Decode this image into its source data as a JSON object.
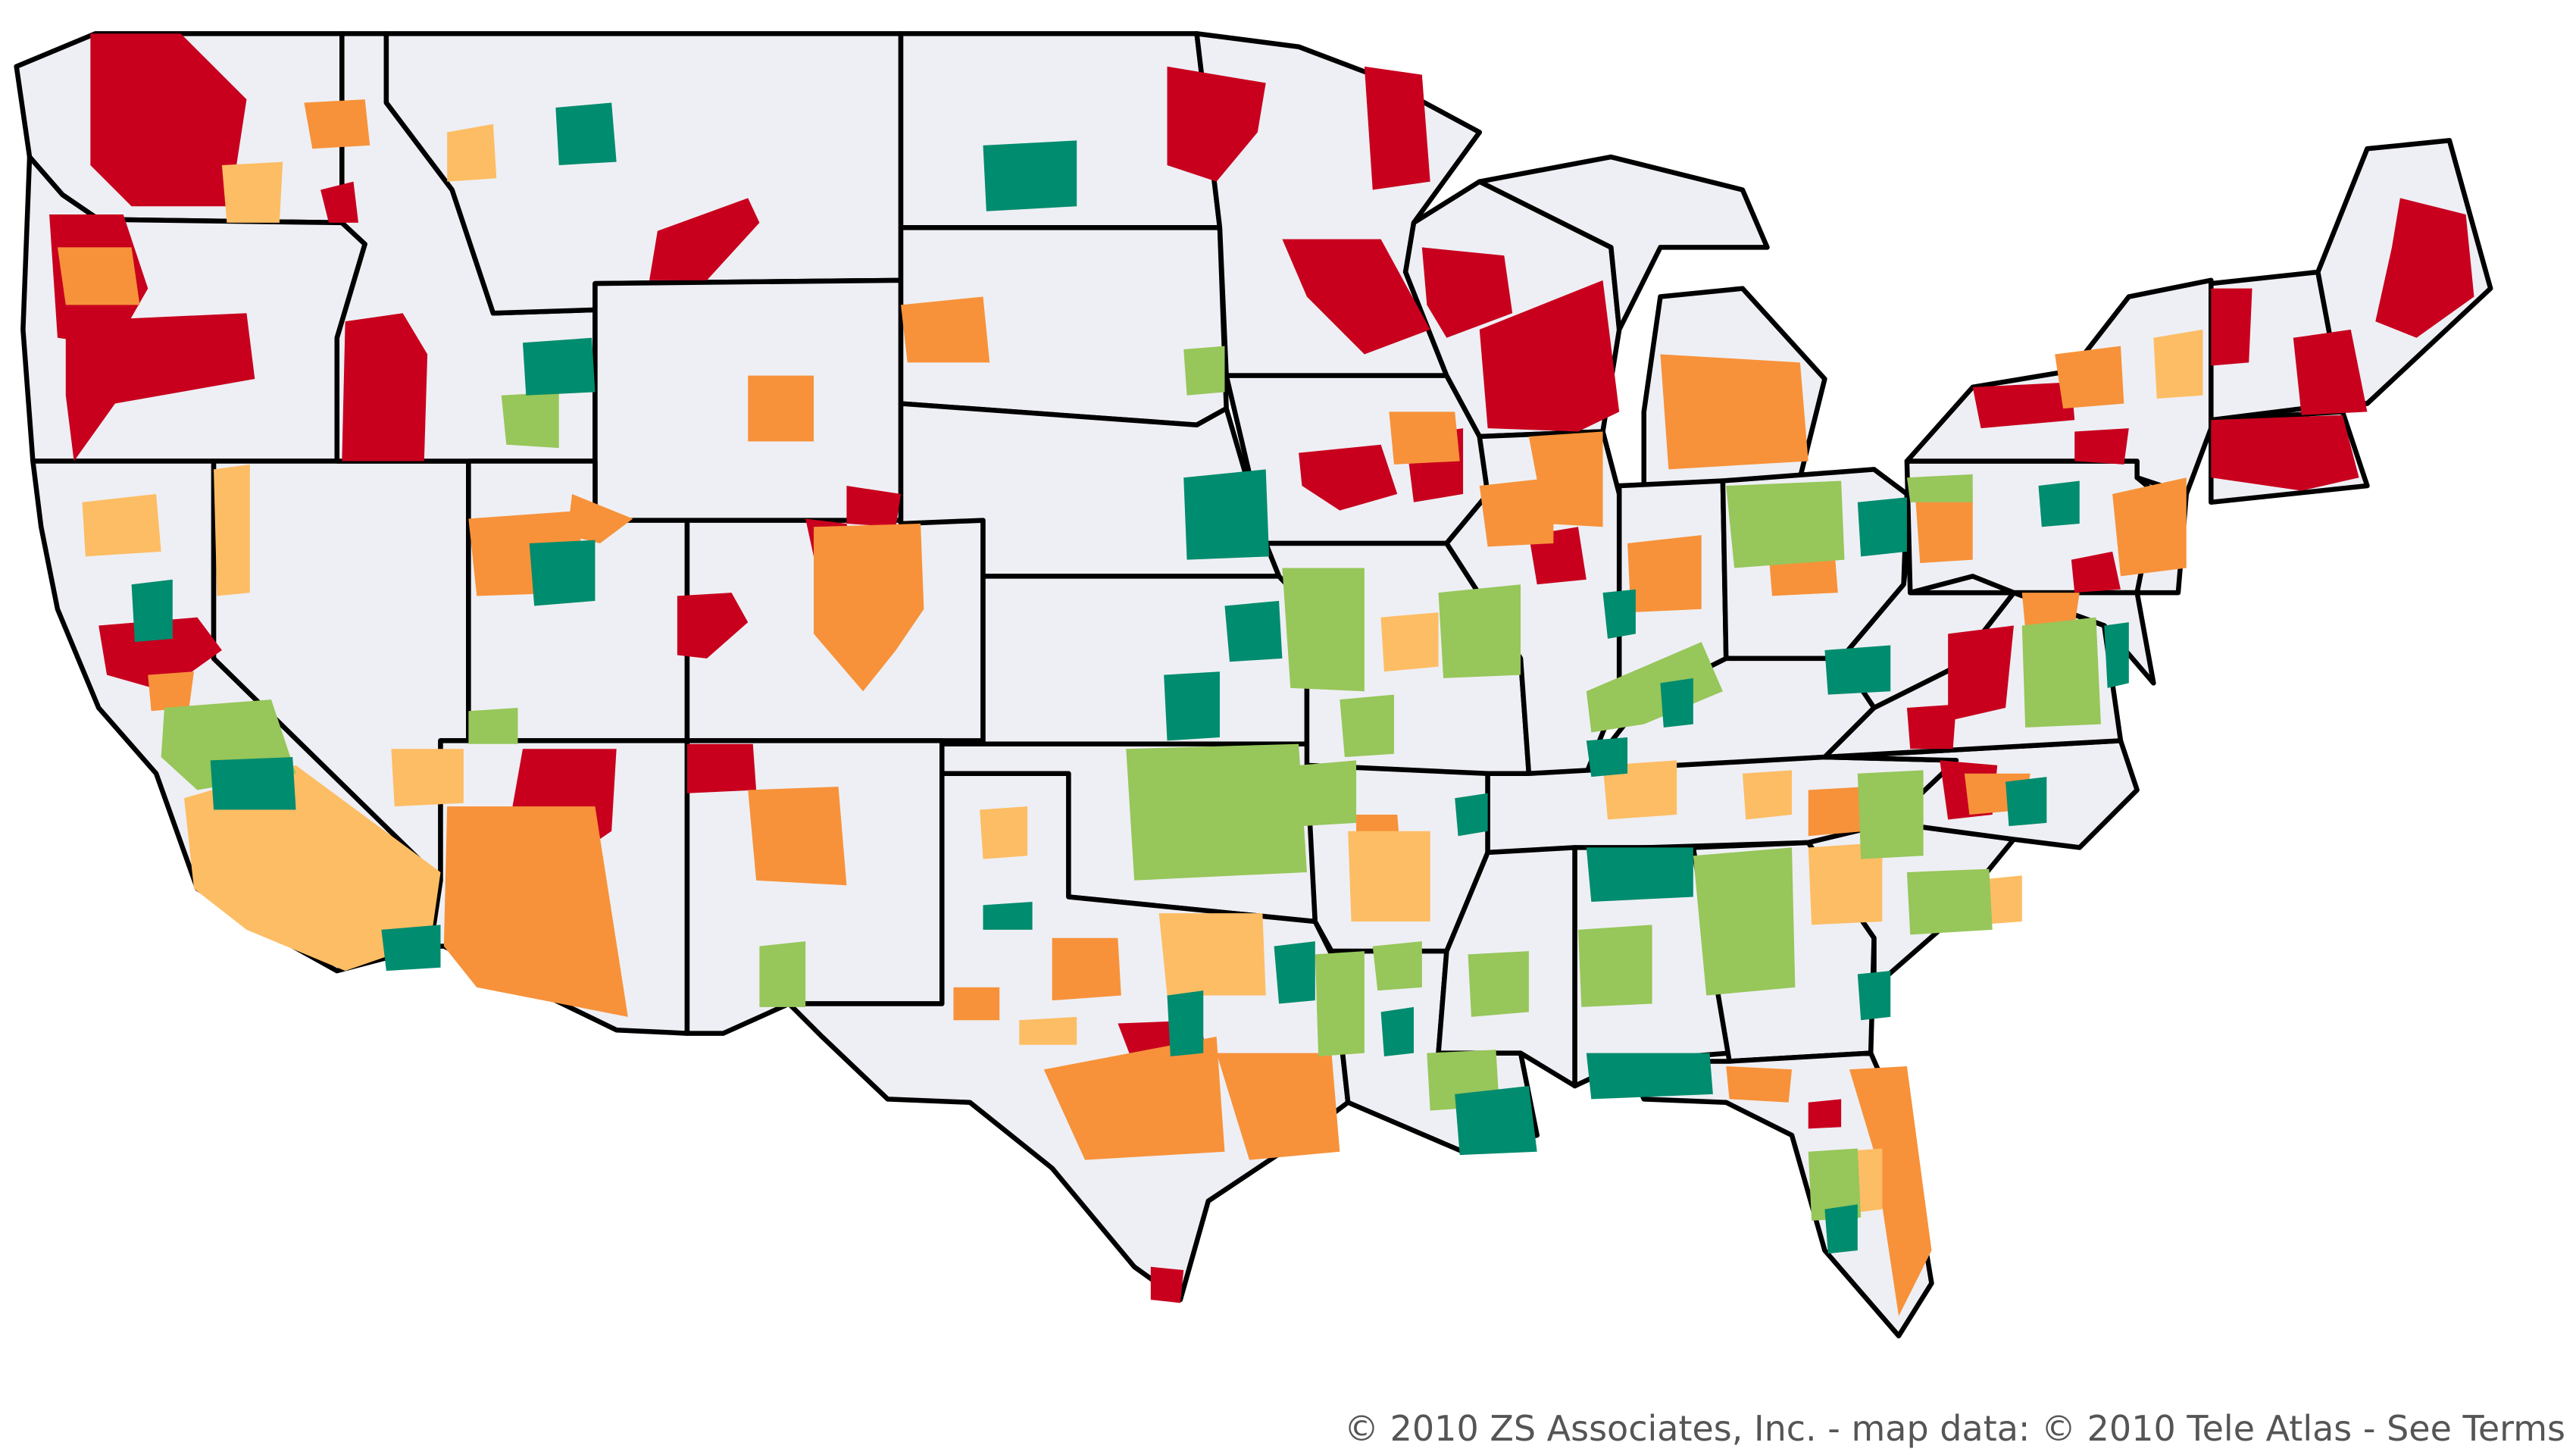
{
  "map": {
    "colors": {
      "land": "#eeeff4",
      "border": "#000000",
      "dark_red": "#c8001e",
      "orange": "#f7923a",
      "light_orange": "#fdbd64",
      "light_green": "#97c65a",
      "teal": "#008c6e"
    }
  },
  "attribution": {
    "text": "© 2010 ZS Associates, Inc. - map data: © 2010 Tele Atlas - ",
    "terms_link": "See Terms"
  }
}
